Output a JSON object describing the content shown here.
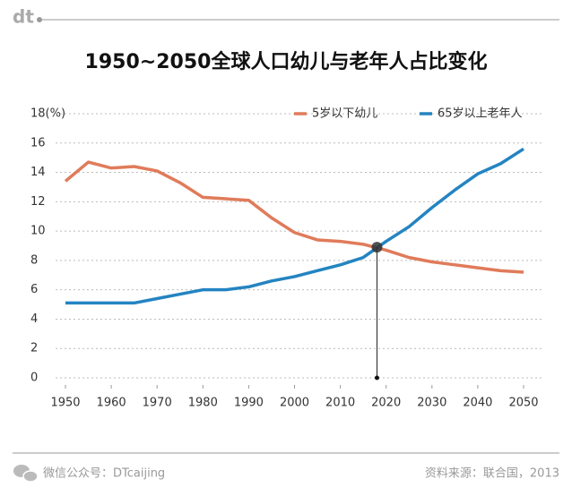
{
  "logo": "dt",
  "chart_data": {
    "type": "line",
    "title": "1950~2050全球人口幼儿与老年人占比变化",
    "x": [
      1950,
      1955,
      1960,
      1965,
      1970,
      1975,
      1980,
      1985,
      1990,
      1995,
      2000,
      2005,
      2010,
      2015,
      2020,
      2025,
      2030,
      2035,
      2040,
      2045,
      2050
    ],
    "series": [
      {
        "name": "5岁以下幼儿",
        "color": "#e07b5a",
        "values": [
          13.4,
          14.7,
          14.3,
          14.4,
          14.1,
          13.3,
          12.3,
          12.2,
          12.1,
          10.9,
          9.9,
          9.4,
          9.3,
          9.1,
          8.7,
          8.2,
          7.9,
          7.7,
          7.5,
          7.3,
          7.2
        ]
      },
      {
        "name": "65岁以上老年人",
        "color": "#2484c1",
        "values": [
          5.1,
          5.1,
          5.1,
          5.1,
          5.4,
          5.7,
          6.0,
          6.0,
          6.2,
          6.6,
          6.9,
          7.3,
          7.7,
          8.2,
          9.3,
          10.3,
          11.6,
          12.8,
          13.9,
          14.6,
          15.6
        ]
      }
    ],
    "xlim": [
      1950,
      2050
    ],
    "xticks": [
      1950,
      1960,
      1970,
      1980,
      1990,
      2000,
      2010,
      2020,
      2030,
      2040,
      2050
    ],
    "ylim": [
      0,
      18
    ],
    "yticks": [
      0,
      2,
      4,
      6,
      8,
      10,
      12,
      14,
      16,
      {
        "value": 18,
        "label": "18(%)"
      }
    ],
    "grid": true,
    "legend": "top-right",
    "crossover": {
      "x": 2018,
      "y": 8.9
    }
  },
  "footer": {
    "left": "微信公众号：DTcaijing",
    "right": "资料来源：联合国，2013"
  }
}
